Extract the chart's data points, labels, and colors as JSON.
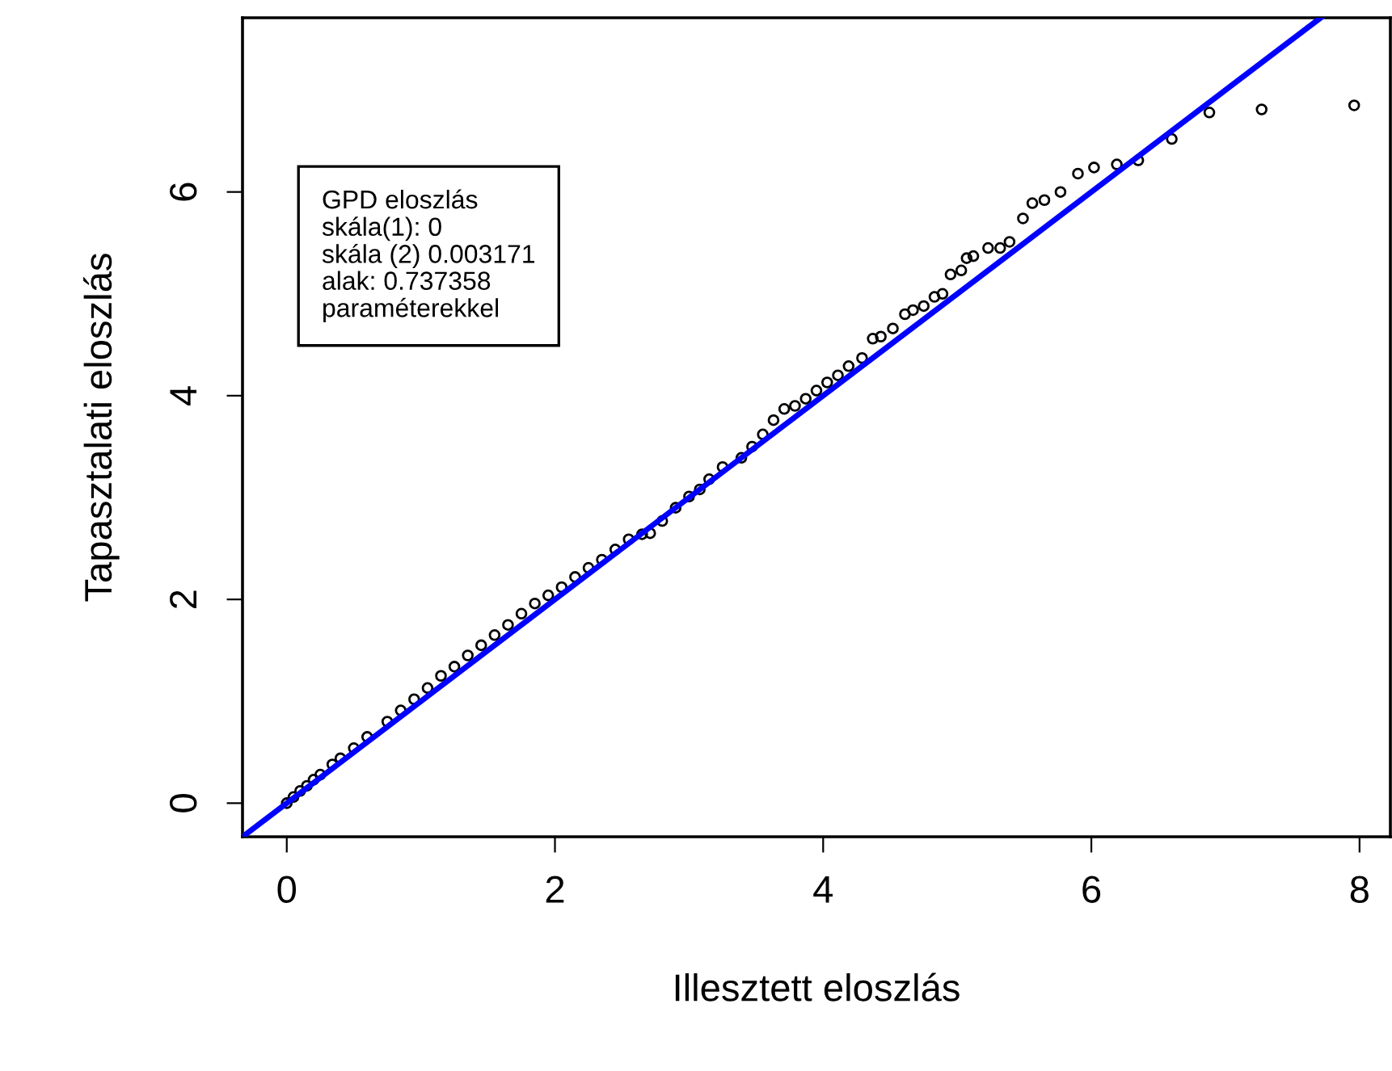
{
  "chart_data": {
    "type": "scatter",
    "xlabel": "Illesztett eloszlás",
    "ylabel": "Tapasztalati eloszlás",
    "annotations": [
      "GPD eloszlás",
      "skála(1): 0",
      "skála (2) 0.003171",
      "alak: 0.737358",
      "paraméterekkel"
    ],
    "xlim": [
      -0.33,
      8.23
    ],
    "ylim": [
      -0.33,
      7.71
    ],
    "xticks": [
      0,
      2,
      4,
      6,
      8
    ],
    "yticks": [
      0,
      2,
      4,
      6
    ],
    "grid": false,
    "marker": "circle",
    "series": [
      {
        "color": "#000000",
        "x": [
          0.0,
          0.05,
          0.1,
          0.15,
          0.2,
          0.25,
          0.34,
          0.4,
          0.5,
          0.6,
          0.75,
          0.85,
          0.95,
          1.05,
          1.15,
          1.25,
          1.35,
          1.45,
          1.55,
          1.65,
          1.75,
          1.85,
          1.95,
          2.05,
          2.15,
          2.25,
          2.35,
          2.45,
          2.55,
          2.65,
          2.71,
          2.8,
          2.9,
          3.0,
          3.08,
          3.15,
          3.25,
          3.39,
          3.47,
          3.55,
          3.63,
          3.71,
          3.79,
          3.87,
          3.95,
          4.03,
          4.11,
          4.19,
          4.29,
          4.37,
          4.43,
          4.52,
          4.61,
          4.67,
          4.75,
          4.83,
          4.89,
          4.95,
          5.03,
          5.07,
          5.12,
          5.23,
          5.32,
          5.39,
          5.49,
          5.56,
          5.65,
          5.77,
          5.9,
          6.02,
          6.19,
          6.35,
          6.6,
          6.88,
          7.27,
          7.96
        ],
        "values": [
          0.0,
          0.06,
          0.12,
          0.17,
          0.23,
          0.28,
          0.38,
          0.44,
          0.54,
          0.65,
          0.8,
          0.91,
          1.02,
          1.13,
          1.25,
          1.34,
          1.45,
          1.55,
          1.65,
          1.75,
          1.86,
          1.96,
          2.04,
          2.12,
          2.22,
          2.31,
          2.39,
          2.49,
          2.59,
          2.64,
          2.65,
          2.77,
          2.9,
          3.01,
          3.08,
          3.18,
          3.3,
          3.39,
          3.5,
          3.62,
          3.76,
          3.87,
          3.9,
          3.97,
          4.05,
          4.13,
          4.2,
          4.29,
          4.37,
          4.56,
          4.58,
          4.66,
          4.8,
          4.84,
          4.88,
          4.97,
          5.0,
          5.19,
          5.23,
          5.35,
          5.37,
          5.45,
          5.45,
          5.51,
          5.74,
          5.89,
          5.92,
          6.0,
          6.18,
          6.24,
          6.27,
          6.31,
          6.52,
          6.78,
          6.81,
          6.85
        ]
      },
      {
        "type": "line",
        "color": "#0000ff",
        "marker": "none",
        "x": [
          -0.33,
          7.71
        ],
        "values": [
          -0.33,
          7.71
        ]
      }
    ]
  }
}
